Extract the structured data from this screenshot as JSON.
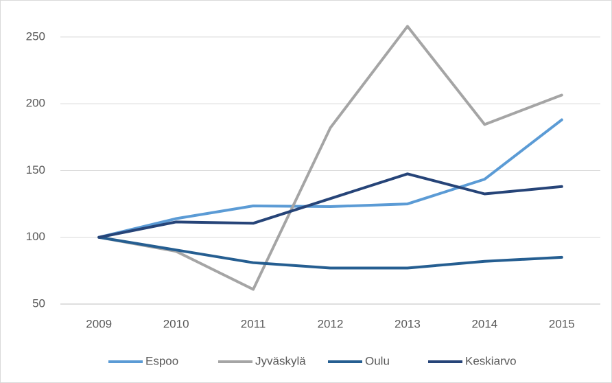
{
  "chart_data": {
    "type": "line",
    "categories": [
      "2009",
      "2010",
      "2011",
      "2012",
      "2013",
      "2014",
      "2015"
    ],
    "series": [
      {
        "name": "Espoo",
        "color": "#5b9bd5",
        "values": [
          100,
          114,
          123.5,
          123,
          125,
          143.5,
          188
        ]
      },
      {
        "name": "Jyväskylä",
        "color": "#a5a5a5",
        "values": [
          100,
          89.5,
          61,
          182,
          258,
          184.5,
          206.5
        ]
      },
      {
        "name": "Oulu",
        "color": "#255e91",
        "values": [
          100,
          90.5,
          81,
          77,
          77,
          82,
          85
        ]
      },
      {
        "name": "Keskiarvo",
        "color": "#264478",
        "values": [
          100,
          111.5,
          110.5,
          129,
          147.5,
          132.5,
          138
        ]
      }
    ],
    "ylim": [
      50,
      270
    ],
    "yticks": [
      50,
      100,
      150,
      200,
      250
    ],
    "grid": true,
    "legend": "bottom"
  }
}
